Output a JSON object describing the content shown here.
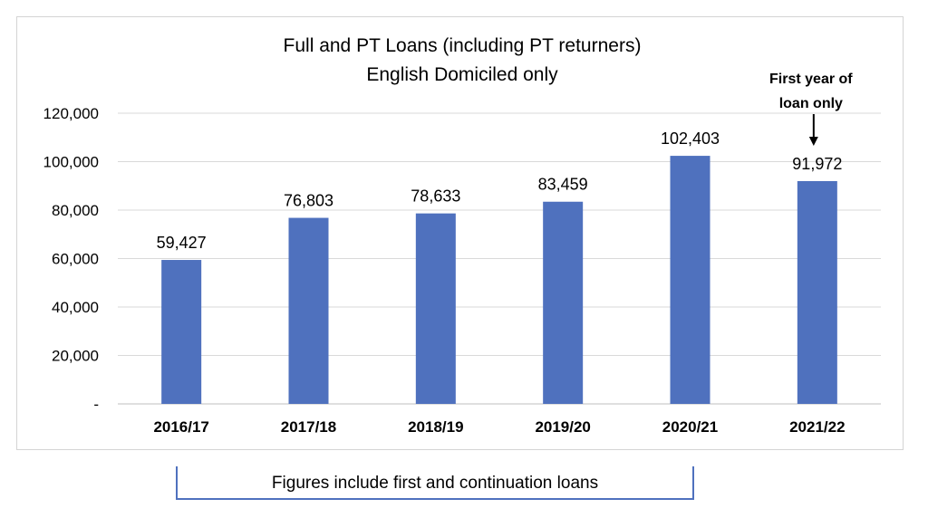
{
  "chart_data": {
    "type": "bar",
    "title": [
      "Full and PT Loans (including PT returners)",
      "English Domiciled only"
    ],
    "categories": [
      "2016/17",
      "2017/18",
      "2018/19",
      "2019/20",
      "2020/21",
      "2021/22"
    ],
    "values": [
      59427,
      76803,
      78633,
      83459,
      102403,
      91972
    ],
    "data_labels": [
      "59,427",
      "76,803",
      "78,633",
      "83,459",
      "102,403",
      "91,972"
    ],
    "yticks": [
      0,
      20000,
      40000,
      60000,
      80000,
      100000,
      120000
    ],
    "ytick_labels": [
      "-",
      "20,000",
      "40,000",
      "60,000",
      "80,000",
      "100,000",
      "120,000"
    ],
    "ylim": [
      0,
      120000
    ],
    "grid": true,
    "bar_color": "#4f71be",
    "annotation": {
      "category": "2021/22",
      "lines": [
        "First year of",
        "loan only"
      ]
    }
  },
  "footnote": "Figures include first and continuation loans",
  "colors": {
    "bar": "#4f71be",
    "grid": "#d9d9d9",
    "bracket": "#4f71be"
  }
}
